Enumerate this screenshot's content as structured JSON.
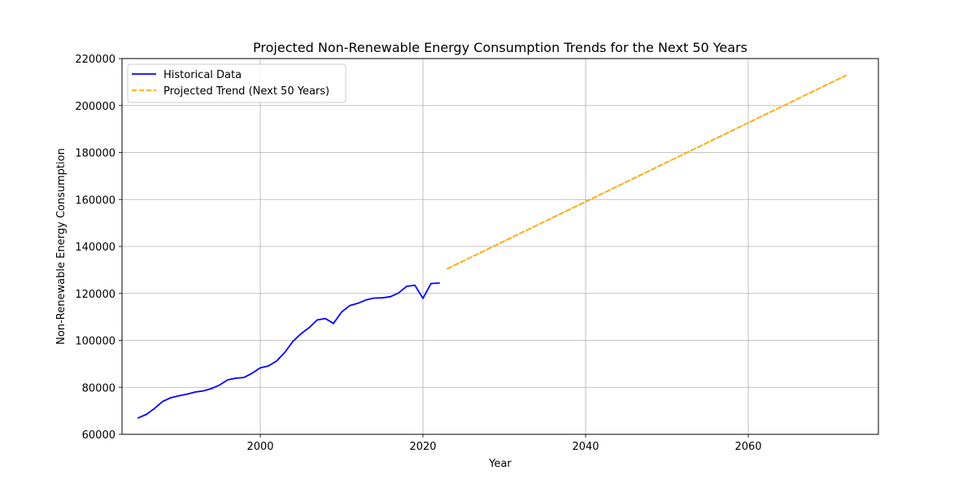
{
  "chart_data": {
    "type": "line",
    "title": "Projected Non-Renewable Energy Consumption Trends for the Next 50 Years",
    "xlabel": "Year",
    "ylabel": "Non-Renewable Energy Consumption",
    "xlim": [
      1983,
      2076
    ],
    "ylim": [
      60000,
      220000
    ],
    "xticks": [
      2000,
      2020,
      2040,
      2060
    ],
    "yticks": [
      60000,
      80000,
      100000,
      120000,
      140000,
      160000,
      180000,
      200000,
      220000
    ],
    "grid": true,
    "legend_position": "top-left",
    "series": [
      {
        "name": "Historical Data",
        "style": "solid",
        "color": "#0000ff",
        "x": [
          1985,
          1986,
          1987,
          1988,
          1989,
          1990,
          1991,
          1992,
          1993,
          1994,
          1995,
          1996,
          1997,
          1998,
          1999,
          2000,
          2001,
          2002,
          2003,
          2004,
          2005,
          2006,
          2007,
          2008,
          2009,
          2010,
          2011,
          2012,
          2013,
          2014,
          2015,
          2016,
          2017,
          2018,
          2019,
          2020,
          2021,
          2022
        ],
        "y": [
          67000,
          68500,
          71000,
          74000,
          75600,
          76400,
          77100,
          78000,
          78500,
          79500,
          81000,
          83200,
          83900,
          84200,
          86000,
          88300,
          89100,
          91200,
          94800,
          99500,
          102800,
          105400,
          108700,
          109300,
          107200,
          112100,
          114800,
          115800,
          117200,
          118000,
          118100,
          118600,
          120200,
          123000,
          123500,
          117900,
          124200,
          124400
        ]
      },
      {
        "name": "Projected Trend (Next 50 Years)",
        "style": "dashed",
        "color": "#ffa500",
        "x": [
          2023,
          2072
        ],
        "y": [
          130500,
          212800
        ]
      }
    ]
  }
}
